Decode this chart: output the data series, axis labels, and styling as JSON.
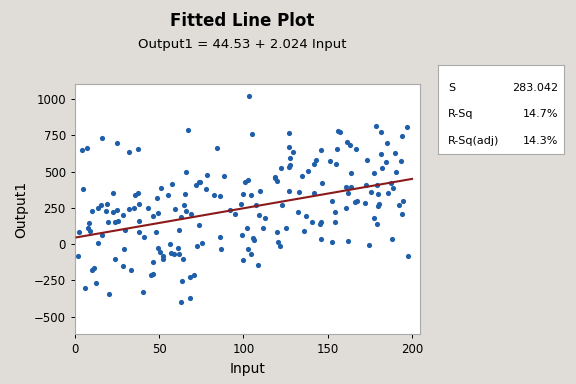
{
  "title": "Fitted Line Plot",
  "subtitle": "Output1 = 44.53 + 2.024 Input",
  "xlabel": "Input",
  "ylabel": "Output1",
  "xlim": [
    0,
    205
  ],
  "ylim": [
    -620,
    1100
  ],
  "xticks": [
    0,
    50,
    100,
    150,
    200
  ],
  "yticks": [
    -500,
    -250,
    0,
    250,
    500,
    750,
    1000
  ],
  "intercept": 44.53,
  "slope": 2.024,
  "scatter_color": "#1f5faa",
  "line_color": "#8b1a1a",
  "bg_color": "#e0ddd8",
  "plot_bg_color": "#ffffff",
  "stats_S": "283.042",
  "stats_Rsq": "14.7%",
  "stats_Rsqadj": "14.3%",
  "seed": 42,
  "n_points": 200,
  "x_min": 1,
  "x_max": 200,
  "noise_std": 283.042,
  "title_color": "#000000",
  "subtitle_color": "#000000"
}
